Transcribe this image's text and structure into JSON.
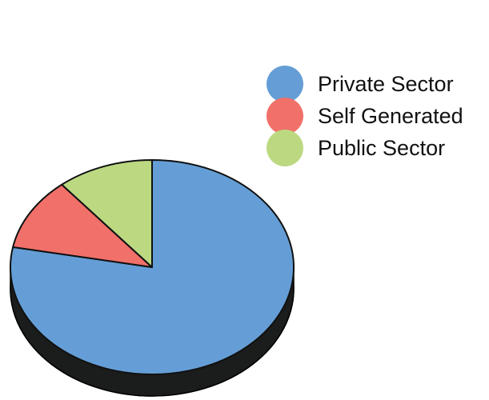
{
  "chart_data": {
    "type": "pie",
    "style": "3d",
    "title": "",
    "categories": [
      "Private Sector",
      "Self Generated",
      "Public Sector"
    ],
    "values": [
      78,
      11,
      11
    ],
    "colors": [
      "#659ed6",
      "#f1706a",
      "#bcd982"
    ],
    "slice_order": "clockwise from 12 o'clock: Private Sector, then Self Generated, then Public Sector",
    "legend_position": "right"
  }
}
